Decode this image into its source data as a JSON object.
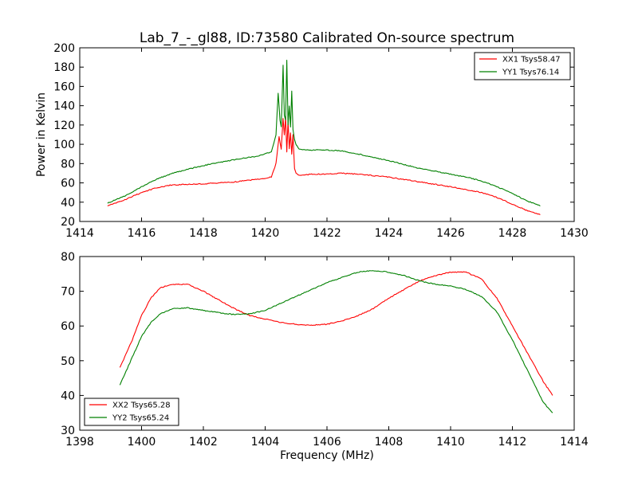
{
  "chart_data": [
    {
      "type": "line",
      "title": "Lab_7_-_gl88, ID:73580 Calibrated On-source spectrum",
      "xlabel": "",
      "ylabel": "Power in Kelvin",
      "xlim": [
        1414,
        1430
      ],
      "ylim": [
        20,
        200
      ],
      "xticks": [
        "1414",
        "1416",
        "1418",
        "1420",
        "1422",
        "1424",
        "1426",
        "1428",
        "1430"
      ],
      "yticks": [
        "20",
        "40",
        "60",
        "80",
        "100",
        "120",
        "140",
        "160",
        "180",
        "200"
      ],
      "legend_position": "top-right",
      "series": [
        {
          "name": "XX1 Tsys58.47",
          "color": "#ff0000",
          "x": [
            1414.9,
            1415.5,
            1416.0,
            1416.5,
            1417.0,
            1418.0,
            1419.0,
            1419.8,
            1420.2,
            1420.35,
            1420.45,
            1420.52,
            1420.58,
            1420.62,
            1420.66,
            1420.7,
            1420.74,
            1420.78,
            1420.82,
            1420.86,
            1420.9,
            1420.95,
            1421.0,
            1421.1,
            1421.2,
            1421.5,
            1422.0,
            1422.5,
            1423.0,
            1424.0,
            1425.0,
            1426.0,
            1426.5,
            1427.0,
            1427.5,
            1428.0,
            1428.5,
            1428.9
          ],
          "y": [
            36,
            43,
            50,
            55,
            58,
            59,
            61,
            64,
            66,
            80,
            108,
            95,
            127,
            110,
            128,
            92,
            125,
            95,
            112,
            90,
            110,
            75,
            70,
            68,
            68,
            69,
            69,
            70,
            69,
            66,
            61,
            56,
            53,
            50,
            45,
            38,
            31,
            27
          ]
        },
        {
          "name": "YY1 Tsys76.14",
          "color": "#008000",
          "x": [
            1414.9,
            1415.5,
            1416.0,
            1416.5,
            1417.0,
            1418.0,
            1419.0,
            1419.8,
            1420.2,
            1420.35,
            1420.42,
            1420.48,
            1420.52,
            1420.58,
            1420.62,
            1420.66,
            1420.7,
            1420.74,
            1420.78,
            1420.82,
            1420.86,
            1420.9,
            1420.95,
            1421.0,
            1421.1,
            1421.3,
            1422.0,
            1422.5,
            1423.0,
            1424.0,
            1425.0,
            1426.0,
            1426.5,
            1427.0,
            1427.5,
            1428.0,
            1428.5,
            1428.9
          ],
          "y": [
            39,
            47,
            56,
            64,
            70,
            78,
            84,
            88,
            92,
            110,
            153,
            125,
            118,
            182,
            130,
            125,
            187,
            120,
            140,
            118,
            155,
            115,
            105,
            100,
            95,
            94,
            94,
            93,
            90,
            83,
            75,
            69,
            66,
            62,
            56,
            49,
            41,
            36
          ]
        }
      ]
    },
    {
      "type": "line",
      "title": "",
      "xlabel": "Frequency (MHz)",
      "ylabel": "",
      "xlim": [
        1398,
        1414
      ],
      "ylim": [
        30,
        80
      ],
      "xticks": [
        "1398",
        "1400",
        "1402",
        "1404",
        "1406",
        "1408",
        "1410",
        "1412",
        "1414"
      ],
      "yticks": [
        "30",
        "40",
        "50",
        "60",
        "70",
        "80"
      ],
      "legend_position": "bottom-left",
      "series": [
        {
          "name": "XX2 Tsys65.28",
          "color": "#ff0000",
          "x": [
            1399.3,
            1399.7,
            1400.0,
            1400.3,
            1400.6,
            1401.0,
            1401.5,
            1402.0,
            1402.5,
            1403.0,
            1403.5,
            1404.0,
            1404.5,
            1405.0,
            1405.5,
            1406.0,
            1406.5,
            1407.0,
            1407.5,
            1408.0,
            1408.5,
            1409.0,
            1409.5,
            1410.0,
            1410.5,
            1411.0,
            1411.5,
            1412.0,
            1412.5,
            1413.0,
            1413.3
          ],
          "y": [
            48,
            56,
            63,
            68,
            71,
            72,
            72,
            70,
            67.5,
            65,
            63,
            62,
            61,
            60.5,
            60.2,
            60.5,
            61.5,
            63,
            65,
            68,
            70.5,
            73,
            74.5,
            75.5,
            75.5,
            73.5,
            68,
            60,
            52,
            44,
            40
          ]
        },
        {
          "name": "YY2 Tsys65.24",
          "color": "#008000",
          "x": [
            1399.3,
            1399.7,
            1400.0,
            1400.3,
            1400.6,
            1401.0,
            1401.5,
            1402.0,
            1402.5,
            1403.0,
            1403.5,
            1404.0,
            1404.5,
            1405.0,
            1405.5,
            1406.0,
            1406.5,
            1407.0,
            1407.5,
            1408.0,
            1408.5,
            1409.0,
            1409.5,
            1410.0,
            1410.5,
            1411.0,
            1411.5,
            1412.0,
            1412.5,
            1413.0,
            1413.3
          ],
          "y": [
            43,
            51,
            57,
            61,
            63.5,
            65,
            65.2,
            64.5,
            63.8,
            63.3,
            63.5,
            64.5,
            66.5,
            68.5,
            70.5,
            72.5,
            74,
            75.5,
            76,
            75.5,
            74.5,
            73,
            72,
            71.5,
            70.5,
            68.5,
            64,
            56,
            47,
            38,
            35
          ]
        }
      ]
    }
  ]
}
